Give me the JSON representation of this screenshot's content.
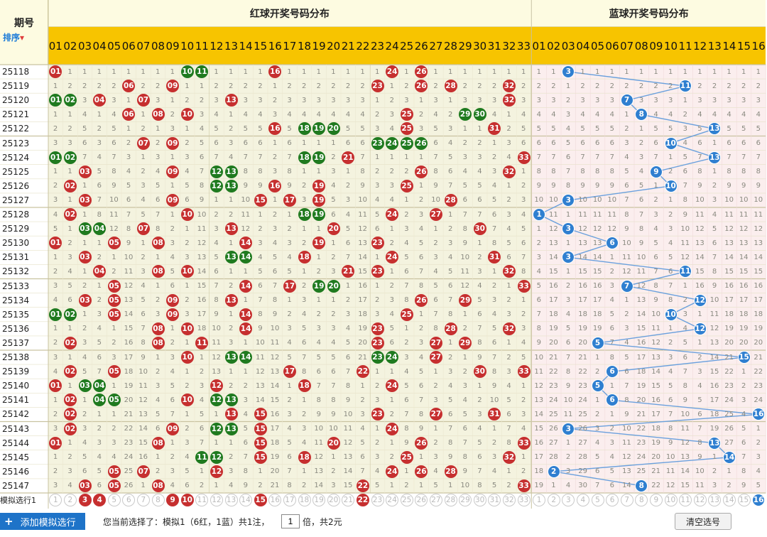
{
  "header": {
    "period_title": "期号",
    "sort_label_a": "排序",
    "sort_arrow": "▾",
    "red_title": "红球开奖号码分布",
    "blue_title": "蓝球开奖号码分布"
  },
  "red_numbers": [
    "01",
    "02",
    "03",
    "04",
    "05",
    "06",
    "07",
    "08",
    "09",
    "10",
    "11",
    "12",
    "13",
    "14",
    "15",
    "16",
    "17",
    "18",
    "19",
    "20",
    "21",
    "22",
    "23",
    "24",
    "25",
    "26",
    "27",
    "28",
    "29",
    "30",
    "31",
    "32",
    "33"
  ],
  "blue_numbers": [
    "01",
    "02",
    "03",
    "04",
    "05",
    "06",
    "07",
    "08",
    "09",
    "10",
    "11",
    "12",
    "13",
    "14",
    "15",
    "16"
  ],
  "draws": [
    {
      "period": "25118",
      "red": [
        1,
        10,
        11,
        16,
        24,
        26
      ],
      "blue": 3
    },
    {
      "period": "25119",
      "red": [
        6,
        9,
        23,
        26,
        28,
        32
      ],
      "blue": 11
    },
    {
      "period": "25120",
      "red": [
        1,
        2,
        4,
        7,
        13,
        32
      ],
      "blue": 7
    },
    {
      "period": "25121",
      "red": [
        6,
        8,
        10,
        25,
        29,
        30
      ],
      "blue": 8
    },
    {
      "period": "25122",
      "red": [
        16,
        18,
        19,
        20,
        25,
        31
      ],
      "blue": 13
    },
    {
      "period": "25123",
      "red": [
        7,
        9,
        23,
        24,
        25,
        26
      ],
      "blue": 10
    },
    {
      "period": "25124",
      "red": [
        1,
        2,
        18,
        19,
        21,
        33
      ],
      "blue": 13
    },
    {
      "period": "25125",
      "red": [
        3,
        9,
        12,
        13,
        26,
        32
      ],
      "blue": 9
    },
    {
      "period": "25126",
      "red": [
        2,
        12,
        13,
        16,
        19,
        25
      ],
      "blue": 10
    },
    {
      "period": "25127",
      "red": [
        3,
        9,
        15,
        17,
        19,
        28
      ],
      "blue": 3
    },
    {
      "period": "25128",
      "red": [
        2,
        10,
        18,
        19,
        24,
        27
      ],
      "blue": 1
    },
    {
      "period": "25129",
      "red": [
        3,
        4,
        7,
        13,
        20,
        30
      ],
      "blue": 3
    },
    {
      "period": "25130",
      "red": [
        1,
        5,
        8,
        14,
        19,
        23
      ],
      "blue": 6
    },
    {
      "period": "25131",
      "red": [
        3,
        13,
        14,
        18,
        24,
        31
      ],
      "blue": 3
    },
    {
      "period": "25132",
      "red": [
        4,
        8,
        10,
        21,
        23,
        32
      ],
      "blue": 11
    },
    {
      "period": "25133",
      "red": [
        5,
        14,
        17,
        19,
        20,
        33
      ],
      "blue": 7
    },
    {
      "period": "25134",
      "red": [
        3,
        5,
        9,
        13,
        26,
        29
      ],
      "blue": 12
    },
    {
      "period": "25135",
      "red": [
        1,
        2,
        5,
        9,
        14,
        25
      ],
      "blue": 10
    },
    {
      "period": "25136",
      "red": [
        8,
        10,
        14,
        23,
        28,
        32
      ],
      "blue": 12
    },
    {
      "period": "25137",
      "red": [
        2,
        8,
        11,
        23,
        27,
        29
      ],
      "blue": 5
    },
    {
      "period": "25138",
      "red": [
        10,
        13,
        14,
        23,
        24,
        27
      ],
      "blue": 15
    },
    {
      "period": "25139",
      "red": [
        2,
        5,
        17,
        22,
        30,
        33
      ],
      "blue": 6
    },
    {
      "period": "25140",
      "red": [
        1,
        3,
        4,
        12,
        18,
        24
      ],
      "blue": 5
    },
    {
      "period": "25141",
      "red": [
        2,
        4,
        5,
        10,
        12,
        13
      ],
      "blue": 6
    },
    {
      "period": "25142",
      "red": [
        2,
        13,
        15,
        23,
        27,
        31
      ],
      "blue": 16
    },
    {
      "period": "25143",
      "red": [
        2,
        9,
        12,
        13,
        15,
        24
      ],
      "blue": 3
    },
    {
      "period": "25144",
      "red": [
        1,
        8,
        15,
        20,
        26,
        33
      ],
      "blue": 13
    },
    {
      "period": "25145",
      "red": [
        11,
        12,
        15,
        18,
        25,
        32
      ],
      "blue": 14
    },
    {
      "period": "25146",
      "red": [
        5,
        7,
        12,
        24,
        26,
        28
      ],
      "blue": 2
    },
    {
      "period": "25147",
      "red": [
        3,
        5,
        8,
        22,
        33
      ],
      "blue": 8
    }
  ],
  "simulation": {
    "row_label": "模拟选行1",
    "red_selected": [
      3,
      4,
      9,
      10,
      15,
      22
    ],
    "blue_selected": 16
  },
  "footer": {
    "add_label": "添加模拟选行",
    "add_icon": "+",
    "status_prefix": "您当前选择了：模拟1（6红，1蓝）共1注，",
    "quantity": "1",
    "status_suffix": "倍，共2元",
    "clear_label": "清空选号"
  },
  "colors": {
    "header_yellow": "#f7c400",
    "red_ball": "#c62f2f",
    "green_ball": "#1f7a1f",
    "blue_ball": "#2f7fd0",
    "red_area_bg": "#f4f3df",
    "blue_area_bg": "#fbeeee",
    "button_blue": "#1e73c8"
  }
}
